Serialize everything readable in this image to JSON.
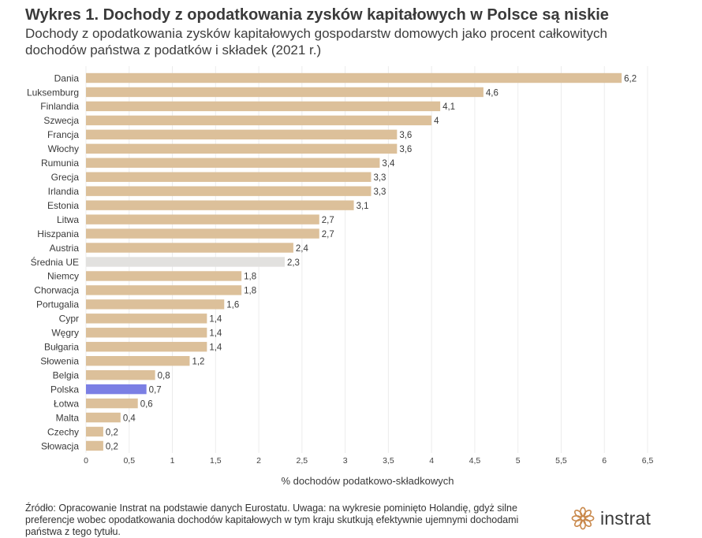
{
  "header": {
    "title": "Wykres 1. Dochody z opodatkowania zysków kapitałowych w Polsce są niskie",
    "subtitle": "Dochody z opodatkowania zysków kapitałowych gospodarstw domowych jako procent całkowitych dochodów państwa z podatków i składek (2021 r.)"
  },
  "chart_data": {
    "type": "bar",
    "orientation": "horizontal",
    "categories": [
      "Dania",
      "Luksemburg",
      "Finlandia",
      "Szwecja",
      "Francja",
      "Włochy",
      "Rumunia",
      "Grecja",
      "Irlandia",
      "Estonia",
      "Litwa",
      "Hiszpania",
      "Austria",
      "Średnia UE",
      "Niemcy",
      "Chorwacja",
      "Portugalia",
      "Cypr",
      "Węgry",
      "Bułgaria",
      "Słowenia",
      "Belgia",
      "Polska",
      "Łotwa",
      "Malta",
      "Czechy",
      "Słowacja"
    ],
    "values": [
      6.2,
      4.6,
      4.1,
      4.0,
      3.6,
      3.6,
      3.4,
      3.3,
      3.3,
      3.1,
      2.7,
      2.7,
      2.4,
      2.3,
      1.8,
      1.8,
      1.6,
      1.4,
      1.4,
      1.4,
      1.2,
      0.8,
      0.7,
      0.6,
      0.4,
      0.2,
      0.2
    ],
    "value_labels": [
      "6,2",
      "4,6",
      "4,1",
      "4",
      "3,6",
      "3,6",
      "3,4",
      "3,3",
      "3,3",
      "3,1",
      "2,7",
      "2,7",
      "2,4",
      "2,3",
      "1,8",
      "1,8",
      "1,6",
      "1,4",
      "1,4",
      "1,4",
      "1,2",
      "0,8",
      "0,7",
      "0,6",
      "0,4",
      "0,2",
      "0,2"
    ],
    "x_ticks": [
      0,
      0.5,
      1,
      1.5,
      2,
      2.5,
      3,
      3.5,
      4,
      4.5,
      5,
      5.5,
      6,
      6.5
    ],
    "x_tick_labels": [
      "0",
      "0,5",
      "1",
      "1,5",
      "2",
      "2,5",
      "3",
      "3,5",
      "4",
      "4,5",
      "5",
      "5,5",
      "6",
      "6,5"
    ],
    "xlim": [
      0,
      6.5
    ],
    "xlabel": "% dochodów podatkowo-składkowych",
    "ylabel": "",
    "grid": true,
    "colors": {
      "default": "#dcc09a",
      "average": "#e2e1df",
      "highlight": "#7b7fe4"
    },
    "average_category": "Średnia UE",
    "highlight_category": "Polska"
  },
  "footer": {
    "note": "Źródło: Opracowanie Instrat na podstawie danych Eurostatu. Uwaga: na wykresie pominięto Holandię, gdyż silne preferencje wobec opodatkowania dochodów kapitałowych w tym kraju skutkują efektywnie ujemnymi dochodami państwa z tego tytułu.",
    "logo_text": "instrat",
    "logo_icon": "instrat-logo-icon",
    "logo_color": "#c9894c"
  }
}
